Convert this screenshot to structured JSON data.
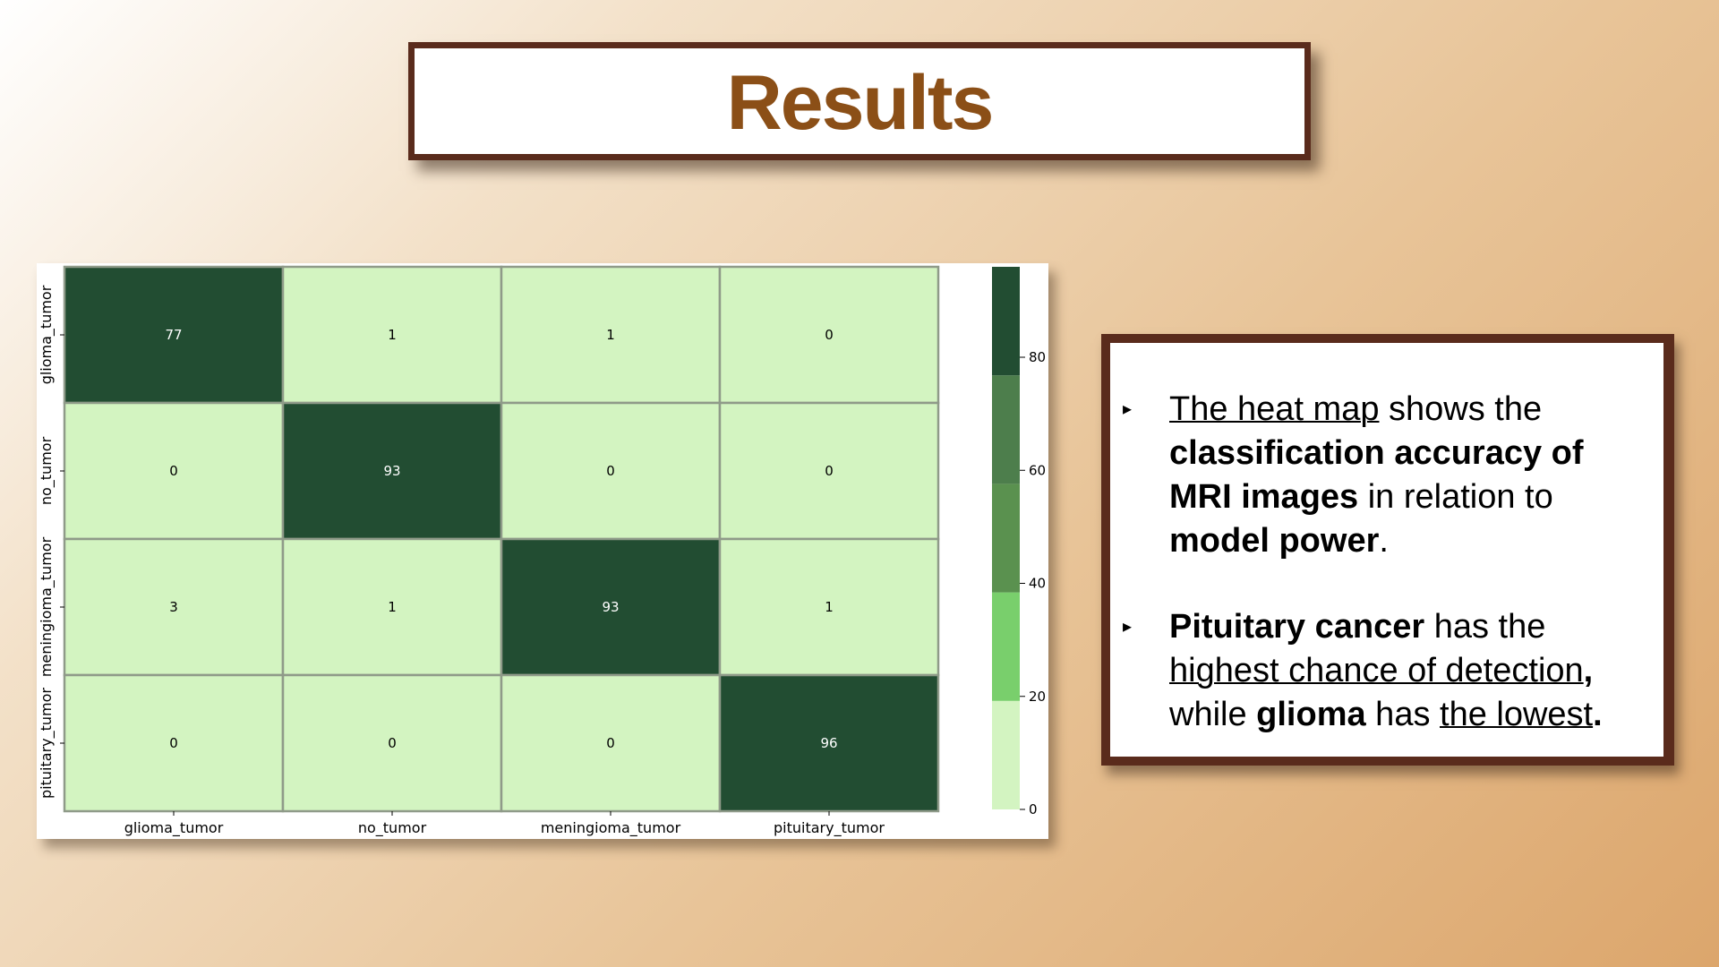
{
  "title": "Results",
  "chart_data": {
    "type": "heatmap",
    "row_labels": [
      "glioma_tumor",
      "no_tumor",
      "meningioma_tumor",
      "pituitary_tumor"
    ],
    "col_labels": [
      "glioma_tumor",
      "no_tumor",
      "meningioma_tumor",
      "pituitary_tumor"
    ],
    "values": [
      [
        77,
        1,
        1,
        0
      ],
      [
        0,
        93,
        0,
        0
      ],
      [
        3,
        1,
        93,
        1
      ],
      [
        0,
        0,
        0,
        96
      ]
    ],
    "colorbar": {
      "min": 0,
      "max": 96,
      "ticks": [
        0,
        20,
        40,
        60,
        80
      ],
      "bins": [
        {
          "from": 0,
          "to": 19.2,
          "color": "#d3f4c1"
        },
        {
          "from": 19.2,
          "to": 38.4,
          "color": "#79cf6c"
        },
        {
          "from": 38.4,
          "to": 57.6,
          "color": "#5a914f"
        },
        {
          "from": 57.6,
          "to": 76.8,
          "color": "#4d7e4c"
        },
        {
          "from": 76.8,
          "to": 96,
          "color": "#224d32"
        }
      ]
    },
    "title": "",
    "xlabel": "",
    "ylabel": ""
  },
  "bullets": [
    {
      "marker": "▸",
      "segments": [
        {
          "text": "The heat map",
          "style": "u"
        },
        {
          "text": " shows the ",
          "style": ""
        },
        {
          "text": "classification accuracy of MRI images",
          "style": "b"
        },
        {
          "text": " in relation to ",
          "style": ""
        },
        {
          "text": "model power",
          "style": "b"
        },
        {
          "text": ".",
          "style": ""
        }
      ]
    },
    {
      "marker": "▸",
      "segments": [
        {
          "text": "Pituitary cancer",
          "style": "b"
        },
        {
          "text": " has the ",
          "style": ""
        },
        {
          "text": "highest chance of detection",
          "style": "u"
        },
        {
          "text": ", ",
          "style": "b"
        },
        {
          "text": "while ",
          "style": ""
        },
        {
          "text": "glioma",
          "style": "b"
        },
        {
          "text": " has ",
          "style": ""
        },
        {
          "text": "the lowest",
          "style": "u"
        },
        {
          "text": ".",
          "style": "b"
        }
      ]
    }
  ]
}
